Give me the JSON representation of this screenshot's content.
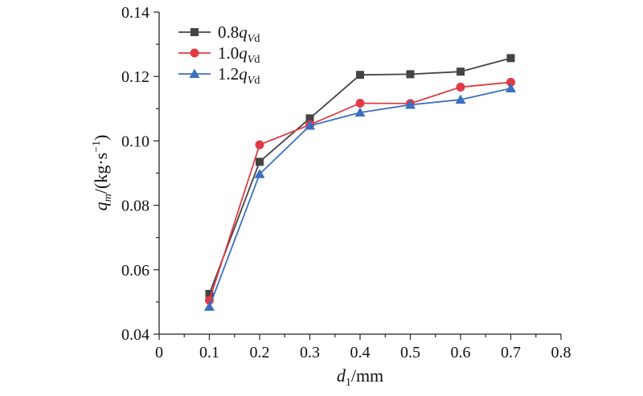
{
  "chart_data": {
    "type": "line",
    "x": [
      0.1,
      0.2,
      0.3,
      0.4,
      0.5,
      0.6,
      0.7
    ],
    "series": [
      {
        "name": "0.8q_Vd",
        "label_prefix": "0.8",
        "label_var": "q",
        "label_sub": "Vd",
        "values": [
          0.0525,
          0.0935,
          0.107,
          0.1205,
          0.1207,
          0.1215,
          0.1257
        ],
        "color": "#444444",
        "marker": "square"
      },
      {
        "name": "1.0q_Vd",
        "label_prefix": "1.0",
        "label_var": "q",
        "label_sub": "Vd",
        "values": [
          0.0505,
          0.0988,
          0.105,
          0.1117,
          0.1116,
          0.1167,
          0.1182
        ],
        "color": "#e03b45",
        "marker": "circle"
      },
      {
        "name": "1.2q_Vd",
        "label_prefix": "1.2",
        "label_var": "q",
        "label_sub": "Vd",
        "values": [
          0.0485,
          0.0897,
          0.1047,
          0.1088,
          0.1112,
          0.1128,
          0.1163
        ],
        "color": "#3a6fbf",
        "marker": "triangle"
      }
    ],
    "xlim": [
      0,
      0.8
    ],
    "ylim": [
      0.04,
      0.14
    ],
    "x_ticks": [
      "0",
      "0.1",
      "0.2",
      "0.3",
      "0.4",
      "0.5",
      "0.6",
      "0.7",
      "0.8"
    ],
    "y_ticks": [
      "0.04",
      "0.06",
      "0.08",
      "0.10",
      "0.12",
      "0.14"
    ],
    "xlabel": {
      "var": "d",
      "sub": "1",
      "unit": "/mm"
    },
    "ylabel": {
      "var": "q",
      "sub": "m",
      "unit": "/(kg·s",
      "sup": "−1",
      "close": ")"
    },
    "legend_position": "top-left",
    "grid": false
  }
}
